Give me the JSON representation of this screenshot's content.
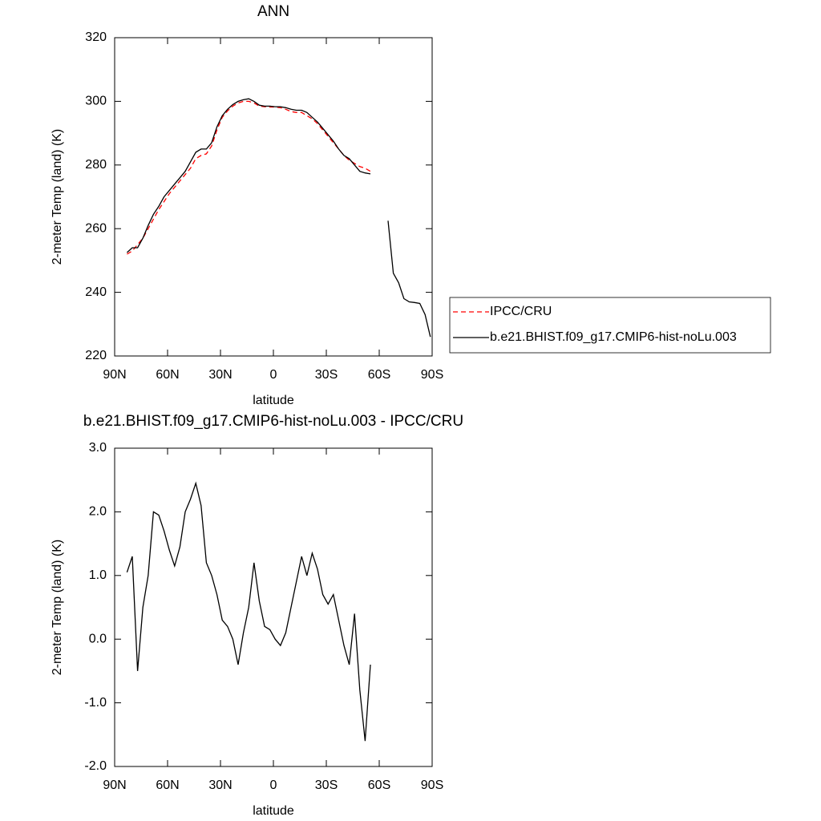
{
  "chart_data": [
    {
      "type": "line",
      "title": "ANN",
      "x_label": "latitude",
      "y_label": "2-meter Temp (land) (K)",
      "x": [
        83,
        80,
        77,
        74,
        71,
        68,
        65,
        62,
        59,
        56,
        53,
        50,
        47,
        44,
        41,
        38,
        35,
        32,
        29,
        26,
        23,
        20,
        17,
        14,
        11,
        8,
        5,
        2,
        -1,
        -4,
        -7,
        -10,
        -13,
        -16,
        -19,
        -22,
        -25,
        -28,
        -31,
        -34,
        -37,
        -40,
        -43,
        -46,
        -49,
        -52,
        -55,
        -58,
        -61,
        -65,
        -68,
        -71,
        -74,
        -77,
        -80,
        -83,
        -86,
        -89
      ],
      "series": [
        {
          "name": "IPCC/CRU",
          "color": "#ff0000",
          "dashed": true,
          "values": [
            252,
            253,
            255,
            257,
            260,
            263,
            266,
            268.5,
            271,
            273,
            275,
            277,
            279,
            282,
            283,
            283.5,
            286,
            291,
            295,
            297,
            298.5,
            299.5,
            300,
            300,
            299.5,
            298.5,
            298.3,
            298.2,
            298.2,
            298,
            297.5,
            296.8,
            296.5,
            296.5,
            295.5,
            294.5,
            293,
            291,
            289,
            287,
            285,
            283,
            281.5,
            280.5,
            279.5,
            279,
            278,
            null,
            null,
            null,
            null,
            null,
            null,
            null,
            null,
            null,
            null,
            null
          ]
        },
        {
          "name": "b.e21.BHIST.f09_g17.CMIP6-hist-noLu.003",
          "color": "#000000",
          "dashed": false,
          "values": [
            252.5,
            254,
            254,
            257,
            261,
            264.5,
            267,
            270,
            272,
            274,
            276,
            278,
            281,
            284,
            285,
            285,
            287,
            292,
            295.5,
            297.5,
            299,
            300,
            300.5,
            300.8,
            300,
            298.8,
            298.5,
            298.5,
            298.3,
            298.3,
            298,
            297.5,
            297.2,
            297.2,
            296.5,
            295,
            293.5,
            291.5,
            289.5,
            287.5,
            285,
            283,
            282,
            280,
            278,
            277.5,
            277.2,
            null,
            null,
            262.5,
            246,
            243,
            238,
            237,
            236.8,
            236.5,
            233,
            226
          ]
        }
      ],
      "xlim": [
        90,
        -90
      ],
      "xticks": [
        {
          "value": 90,
          "label": "90N"
        },
        {
          "value": 60,
          "label": "60N"
        },
        {
          "value": 30,
          "label": "30N"
        },
        0,
        {
          "value": -30,
          "label": "30S"
        },
        {
          "value": -60,
          "label": "60S"
        },
        {
          "value": -90,
          "label": "90S"
        }
      ],
      "ylim": [
        220,
        320
      ],
      "yticks": [
        220,
        240,
        260,
        280,
        300,
        320
      ],
      "legend": "outside-right"
    },
    {
      "type": "line",
      "title": "b.e21.BHIST.f09_g17.CMIP6-hist-noLu.003 - IPCC/CRU",
      "x_label": "latitude",
      "y_label": "2-meter Temp (land) (K)",
      "x": [
        83,
        80,
        77,
        74,
        71,
        68,
        65,
        62,
        59,
        56,
        53,
        50,
        47,
        44,
        41,
        38,
        35,
        32,
        29,
        26,
        23,
        20,
        17,
        14,
        11,
        8,
        5,
        2,
        -1,
        -4,
        -7,
        -10,
        -13,
        -16,
        -19,
        -22,
        -25,
        -28,
        -31,
        -34,
        -37,
        -40,
        -43,
        -46,
        -49,
        -52,
        -55
      ],
      "values": [
        1.05,
        1.3,
        -0.5,
        0.5,
        1.0,
        2.0,
        1.95,
        1.7,
        1.4,
        1.15,
        1.45,
        2.0,
        2.2,
        2.45,
        2.1,
        1.2,
        1.0,
        0.7,
        0.3,
        0.2,
        0.0,
        -0.4,
        0.1,
        0.5,
        1.2,
        0.6,
        0.2,
        0.15,
        0.0,
        -0.1,
        0.1,
        0.5,
        0.9,
        1.3,
        1.0,
        1.35,
        1.1,
        0.7,
        0.55,
        0.7,
        0.3,
        -0.1,
        -0.4,
        0.4,
        -0.8,
        -1.6,
        -0.4
      ],
      "color": "#000000",
      "xlim": [
        90,
        -90
      ],
      "xticks": [
        {
          "value": 90,
          "label": "90N"
        },
        {
          "value": 60,
          "label": "60N"
        },
        {
          "value": 30,
          "label": "30N"
        },
        0,
        {
          "value": -30,
          "label": "30S"
        },
        {
          "value": -60,
          "label": "60S"
        },
        {
          "value": -90,
          "label": "90S"
        }
      ],
      "ylim": [
        -2,
        3
      ],
      "yticks": [
        {
          "value": -2,
          "label": "-2.0"
        },
        {
          "value": -1,
          "label": "-1.0"
        },
        {
          "value": 0,
          "label": "0.0"
        },
        {
          "value": 1,
          "label": "1.0"
        },
        {
          "value": 2,
          "label": "2.0"
        },
        {
          "value": 3,
          "label": "3.0"
        }
      ]
    }
  ]
}
